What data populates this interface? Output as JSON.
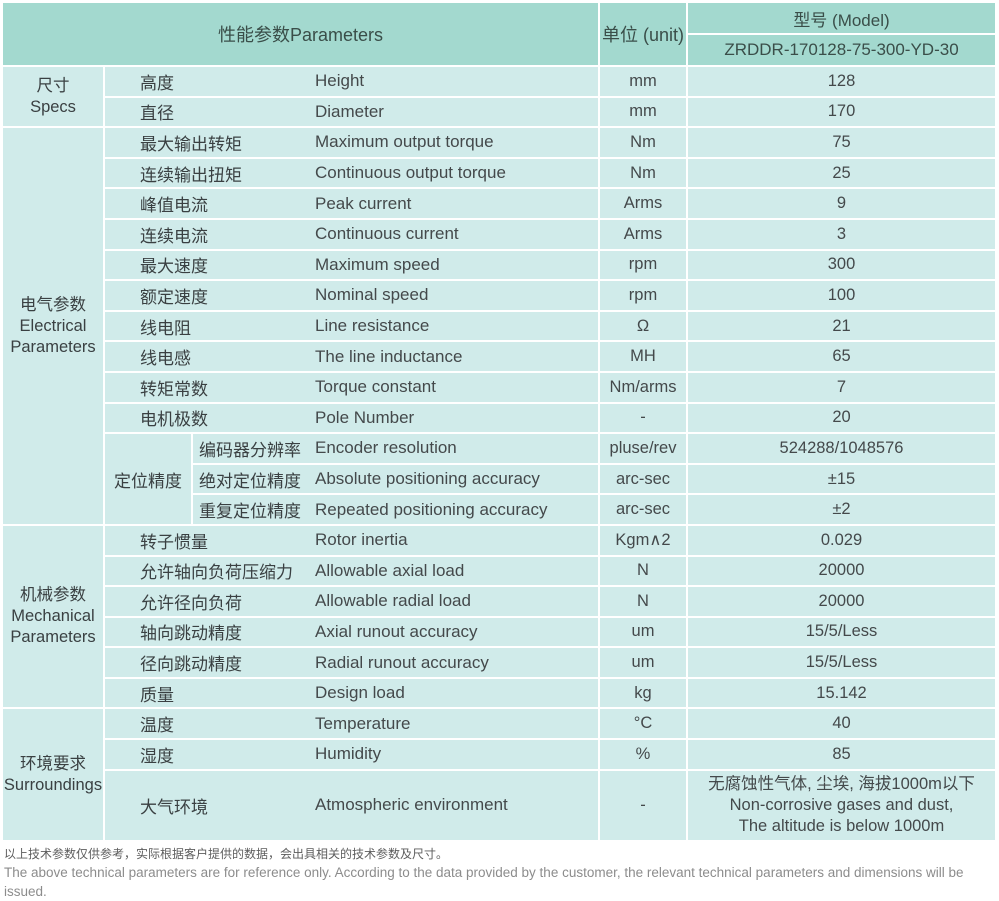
{
  "theme": {
    "header_bg": "#a3d9cf",
    "cell_bg": "#d0ebea",
    "grid_line": "#ffffff"
  },
  "header": {
    "parameters_label": "性能参数Parameters",
    "unit_label": "单位 (unit)",
    "model_label": "型号 (Model)",
    "model_value": "ZRDDR-170128-75-300-YD-30"
  },
  "groups": [
    {
      "category_cn": "尺寸",
      "category_en": "Specs",
      "rows": [
        {
          "cn": "高度",
          "en": "Height",
          "unit": "mm",
          "value": "128"
        },
        {
          "cn": "直径",
          "en": "Diameter",
          "unit": "mm",
          "value": "170"
        }
      ]
    },
    {
      "category_cn": "电气参数",
      "category_en": "Electrical Parameters",
      "rows": [
        {
          "cn": "最大输出转矩",
          "en": "Maximum output torque",
          "unit": "Nm",
          "value": "75"
        },
        {
          "cn": "连续输出扭矩",
          "en": "Continuous output torque",
          "unit": "Nm",
          "value": "25"
        },
        {
          "cn": "峰值电流",
          "en": "Peak current",
          "unit": "Arms",
          "value": "9"
        },
        {
          "cn": "连续电流",
          "en": "Continuous current",
          "unit": "Arms",
          "value": "3"
        },
        {
          "cn": "最大速度",
          "en": "Maximum speed",
          "unit": "rpm",
          "value": "300"
        },
        {
          "cn": "额定速度",
          "en": "Nominal speed",
          "unit": "rpm",
          "value": "100"
        },
        {
          "cn": "线电阻",
          "en": "Line resistance",
          "unit": "Ω",
          "value": "21"
        },
        {
          "cn": "线电感",
          "en": "The line inductance",
          "unit": "MH",
          "value": "65"
        },
        {
          "cn": "转矩常数",
          "en": "Torque constant",
          "unit": "Nm/arms",
          "value": "7"
        },
        {
          "cn": "电机极数",
          "en": "Pole Number",
          "unit": "-",
          "value": "20"
        }
      ],
      "subgroup": {
        "label": "定位精度",
        "rows": [
          {
            "cn": "编码器分辨率",
            "en": "Encoder resolution",
            "unit": "pluse/rev",
            "value": "524288/1048576"
          },
          {
            "cn": "绝对定位精度",
            "en": "Absolute positioning accuracy",
            "unit": "arc-sec",
            "value": "±15"
          },
          {
            "cn": "重复定位精度",
            "en": "Repeated positioning accuracy",
            "unit": "arc-sec",
            "value": "±2"
          }
        ]
      }
    },
    {
      "category_cn": "机械参数",
      "category_en": "Mechanical Parameters",
      "rows": [
        {
          "cn": "转子惯量",
          "en": "Rotor inertia",
          "unit": "Kgm∧2",
          "value": "0.029"
        },
        {
          "cn": "允许轴向负荷压缩力",
          "en": "Allowable axial load",
          "unit": "N",
          "value": "20000"
        },
        {
          "cn": "允许径向负荷",
          "en": "Allowable radial load",
          "unit": "N",
          "value": "20000"
        },
        {
          "cn": "轴向跳动精度",
          "en": "Axial runout accuracy",
          "unit": "um",
          "value": "15/5/Less"
        },
        {
          "cn": "径向跳动精度",
          "en": "Radial runout accuracy",
          "unit": "um",
          "value": "15/5/Less"
        },
        {
          "cn": "质量",
          "en": "Design load",
          "unit": "kg",
          "value": "15.142"
        }
      ]
    },
    {
      "category_cn": "环境要求",
      "category_en": "Surroundings",
      "rows": [
        {
          "cn": "温度",
          "en": "Temperature",
          "unit": "°C",
          "value": "40"
        },
        {
          "cn": "湿度",
          "en": "Humidity",
          "unit": "%",
          "value": "85"
        },
        {
          "cn": "大气环境",
          "en": "Atmospheric environment",
          "unit": "-",
          "tall": true,
          "value_lines": [
            "无腐蚀性气体, 尘埃, 海拔1000m以下",
            "Non-corrosive gases and dust,",
            "The altitude is below 1000m"
          ]
        }
      ]
    }
  ],
  "footnote": {
    "cn": "以上技术参数仅供参考，实际根据客户提供的数据，会出具相关的技术参数及尺寸。",
    "en": "The above technical parameters are for reference only. According to the data provided by the customer, the relevant technical parameters and dimensions will be issued."
  }
}
